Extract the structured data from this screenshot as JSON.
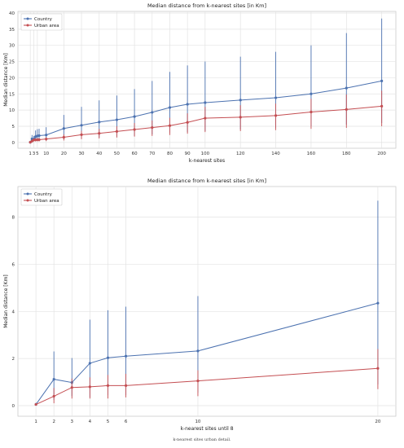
{
  "figure_caption": "k-nearest sites urban detail.",
  "chart_data": [
    {
      "type": "line",
      "title": "Median distance from k-nearest sites [in Km]",
      "xlabel": "k-nearest sites",
      "ylabel": "Median distance [Km]",
      "x": [
        1,
        2,
        3,
        4,
        5,
        6,
        10,
        20,
        30,
        40,
        50,
        60,
        70,
        80,
        90,
        100,
        120,
        140,
        160,
        180,
        200
      ],
      "xticks": [
        1,
        3,
        5,
        10,
        20,
        30,
        40,
        50,
        60,
        70,
        80,
        90,
        100,
        120,
        140,
        160,
        180,
        200
      ],
      "xlim": [
        -6,
        208
      ],
      "ylim": [
        -1.8,
        40.5
      ],
      "yticks": [
        0,
        5,
        10,
        15,
        20,
        25,
        30,
        35,
        40
      ],
      "grid": true,
      "legend": "top-left",
      "series": [
        {
          "name": "Country",
          "color": "#4c72b0",
          "values": [
            0.05,
            1.1,
            1.0,
            1.8,
            2.0,
            2.1,
            2.3,
            4.3,
            5.3,
            6.3,
            7.0,
            8.0,
            9.3,
            10.8,
            11.8,
            12.3,
            13.1,
            13.8,
            15.0,
            16.8,
            19.0
          ],
          "err_low": [
            0.0,
            0.2,
            0.4,
            0.4,
            0.5,
            0.5,
            0.6,
            1.0,
            1.2,
            1.5,
            1.8,
            2.0,
            2.5,
            3.0,
            3.2,
            3.5,
            4.0,
            4.5,
            5.0,
            5.5,
            6.0
          ],
          "err_high": [
            0.3,
            2.3,
            2.0,
            3.7,
            4.1,
            4.2,
            4.7,
            8.5,
            11.0,
            13.0,
            14.5,
            16.5,
            19.0,
            21.8,
            23.8,
            25.0,
            26.5,
            28.0,
            30.0,
            33.8,
            38.3
          ]
        },
        {
          "name": "Urban area",
          "color": "#c44e52",
          "values": [
            0.05,
            0.4,
            0.75,
            0.8,
            0.85,
            0.85,
            1.05,
            1.6,
            2.4,
            2.8,
            3.4,
            4.0,
            4.6,
            5.2,
            6.2,
            7.5,
            7.8,
            8.3,
            9.4,
            10.2,
            11.2
          ],
          "err_low": [
            0.0,
            0.1,
            0.3,
            0.3,
            0.3,
            0.3,
            0.4,
            0.6,
            1.0,
            1.2,
            1.5,
            1.8,
            2.0,
            2.3,
            2.7,
            3.2,
            3.5,
            3.8,
            4.2,
            4.5,
            5.0
          ],
          "err_high": [
            0.1,
            0.8,
            1.2,
            1.3,
            1.3,
            1.3,
            1.6,
            2.5,
            3.6,
            4.2,
            5.0,
            6.0,
            6.8,
            7.6,
            9.0,
            11.0,
            11.5,
            12.0,
            13.5,
            14.8,
            16.0
          ]
        }
      ]
    },
    {
      "type": "line",
      "title": "Median distance from k-nearest sites [in Km]",
      "xlabel": "k-nearest sites until 8",
      "ylabel": "Median distance [Km]",
      "x": [
        1,
        2,
        3,
        4,
        5,
        6,
        10,
        20
      ],
      "xticks": [
        1,
        2,
        3,
        4,
        5,
        6,
        10,
        20
      ],
      "xlim": [
        0,
        21
      ],
      "ylim": [
        -0.45,
        9.3
      ],
      "yticks": [
        0,
        2,
        4,
        6,
        8
      ],
      "grid": true,
      "legend": "top-left",
      "series": [
        {
          "name": "Country",
          "color": "#4c72b0",
          "values": [
            0.05,
            1.12,
            0.98,
            1.8,
            2.03,
            2.1,
            2.32,
            4.35
          ],
          "err_low": [
            0.0,
            0.25,
            0.4,
            0.35,
            0.45,
            0.45,
            0.55,
            0.9
          ],
          "err_high": [
            0.12,
            2.3,
            2.02,
            3.65,
            4.05,
            4.2,
            4.65,
            8.7
          ]
        },
        {
          "name": "Urban area",
          "color": "#c44e52",
          "values": [
            0.05,
            0.4,
            0.77,
            0.8,
            0.85,
            0.85,
            1.05,
            1.58
          ],
          "err_low": [
            0.0,
            0.1,
            0.3,
            0.3,
            0.3,
            0.35,
            0.4,
            0.7
          ],
          "err_high": [
            0.1,
            0.75,
            1.15,
            1.2,
            1.3,
            1.35,
            1.5,
            2.4
          ]
        }
      ]
    }
  ]
}
